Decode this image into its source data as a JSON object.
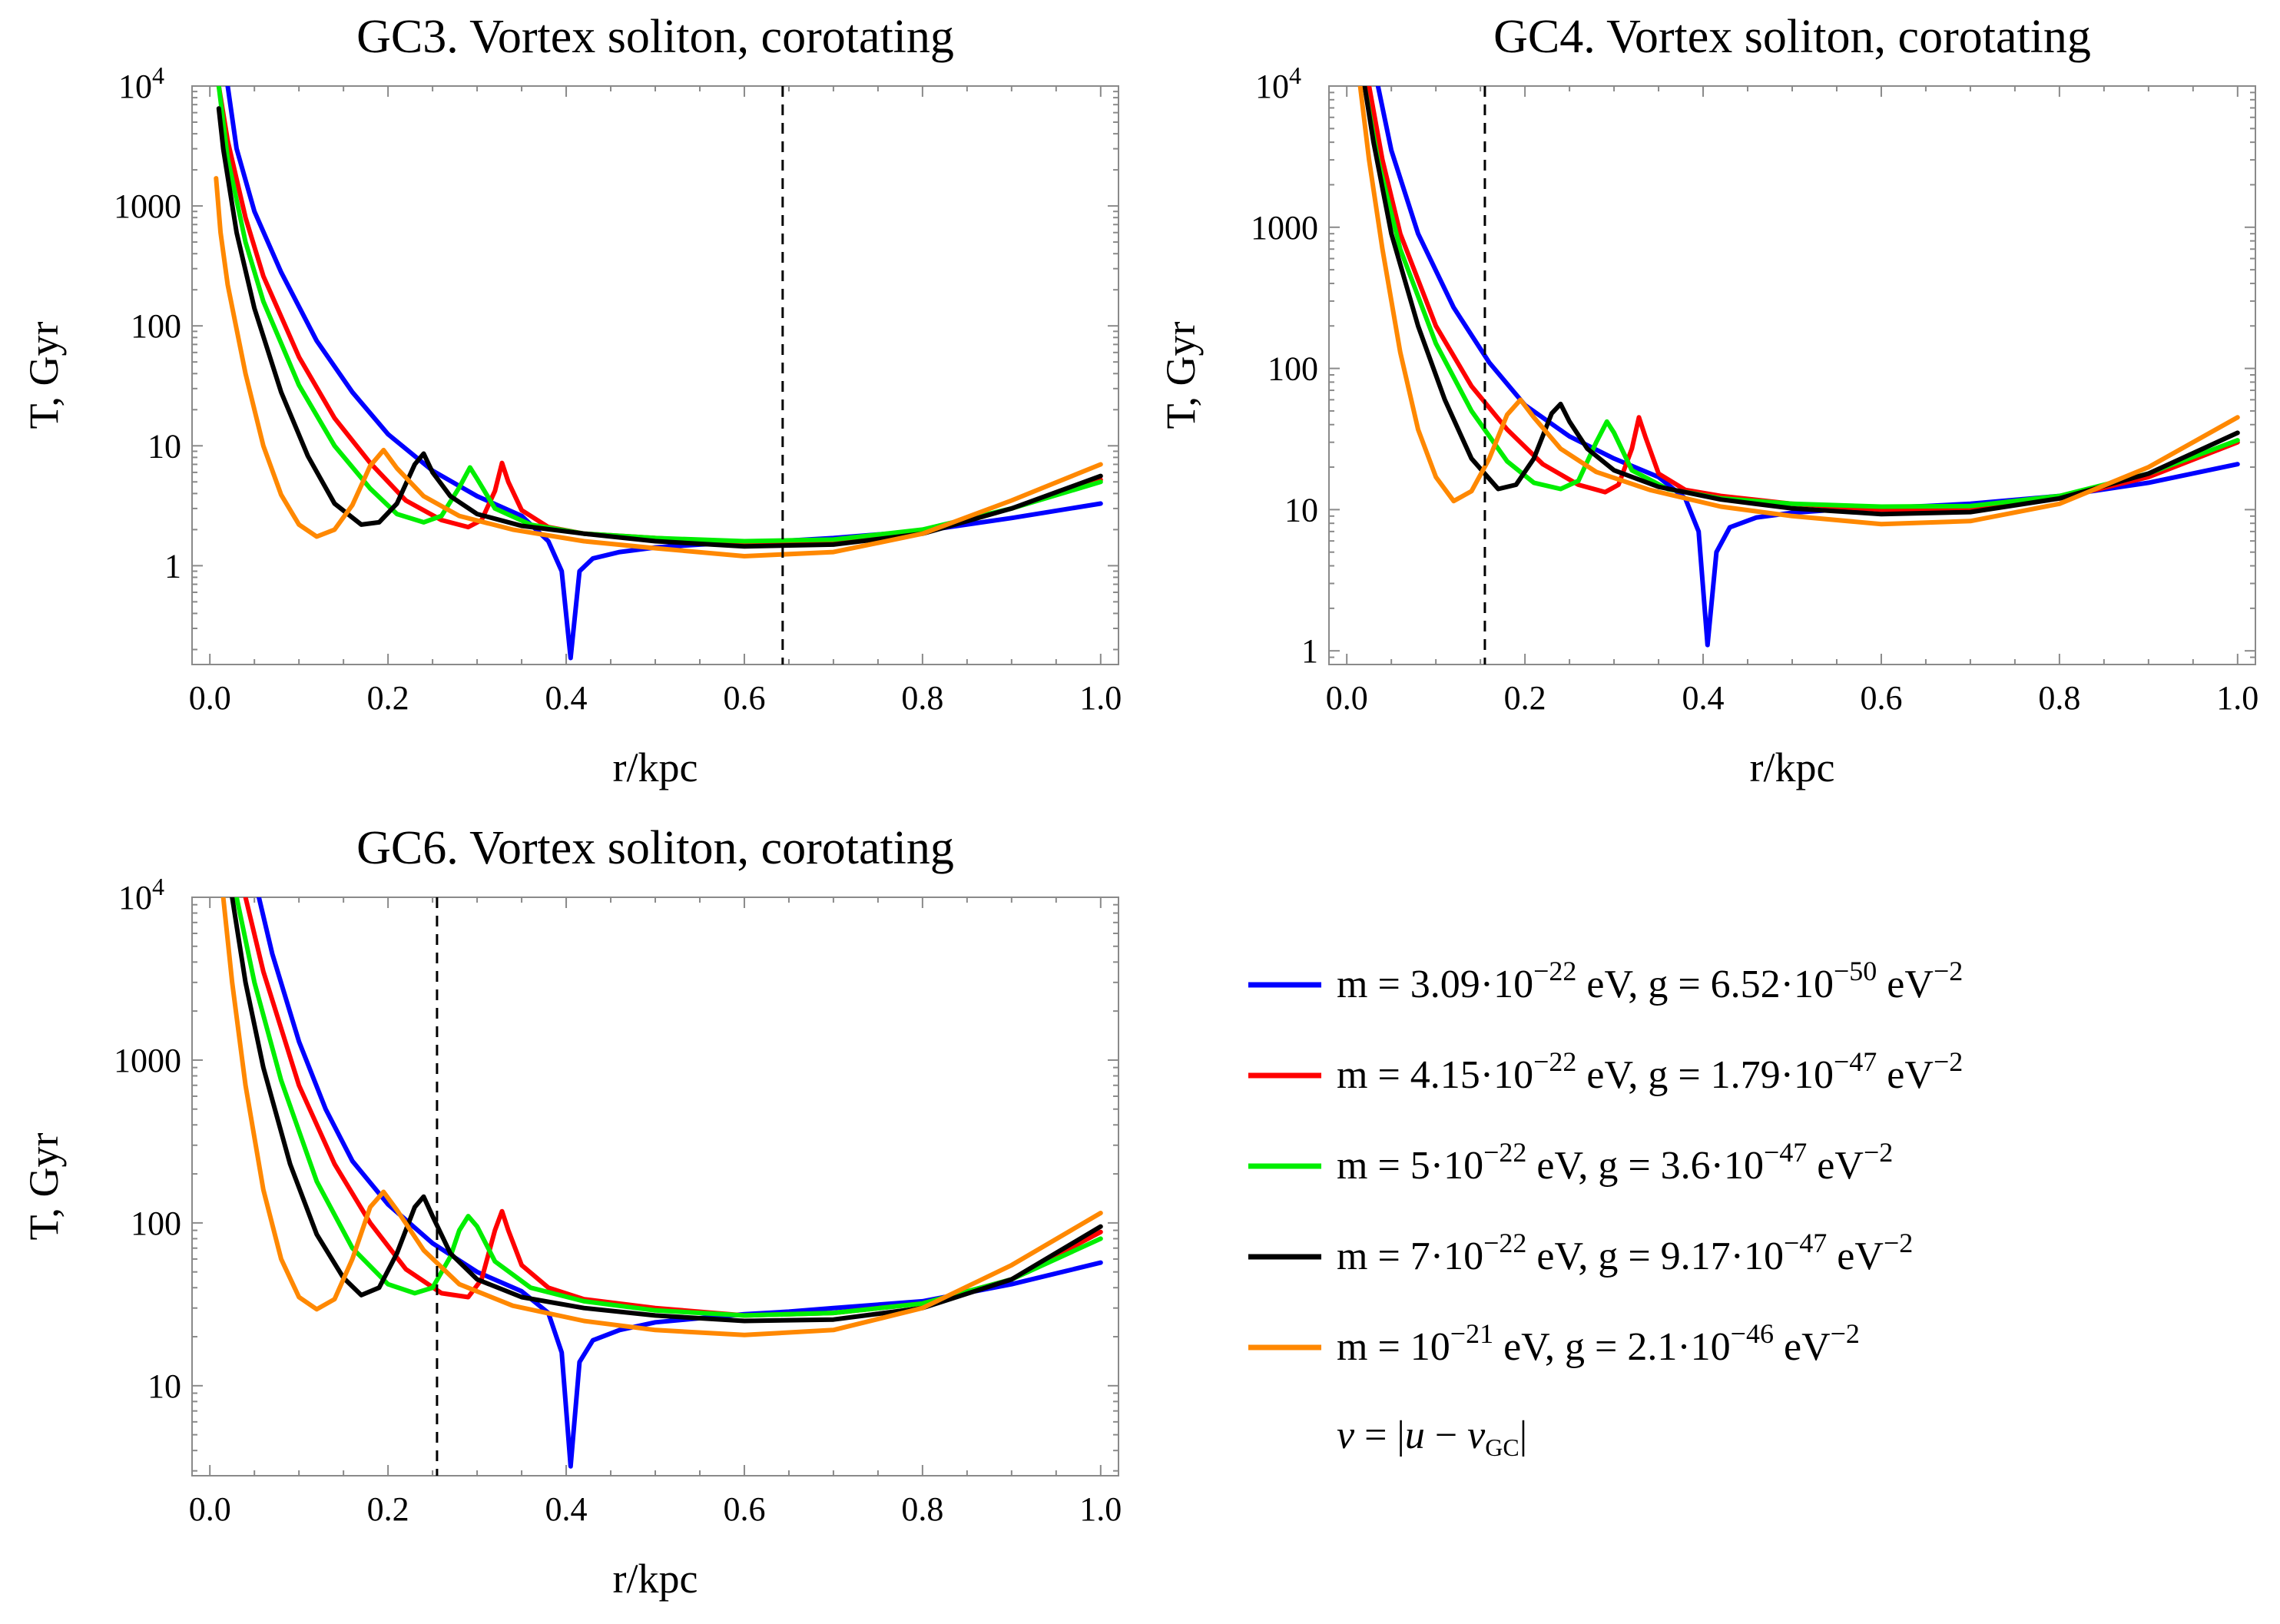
{
  "chart_data": [
    {
      "type": "line",
      "title": "GC3. Vortex soliton, corotating",
      "xlabel": "r/kpc",
      "ylabel": "T, Gyr",
      "yscale": "log",
      "xlim": [
        0,
        1.0
      ],
      "ylim": [
        0.15,
        10000
      ],
      "x_ticks": [
        "0.0",
        "0.2",
        "0.4",
        "0.6",
        "0.8",
        "1.0"
      ],
      "y_ticks": [
        {
          "value": 1,
          "label": "1"
        },
        {
          "value": 10,
          "label": "10"
        },
        {
          "value": 100,
          "label": "100"
        },
        {
          "value": 1000,
          "label": "1000"
        },
        {
          "value": 10000,
          "label": "10",
          "exp": "4"
        }
      ],
      "vline_x": 0.643,
      "series": [
        {
          "name": "m = 3.09·10^-22",
          "color": "#0000ff",
          "x": [
            0.02,
            0.03,
            0.05,
            0.08,
            0.12,
            0.16,
            0.2,
            0.25,
            0.3,
            0.35,
            0.38,
            0.395,
            0.405,
            0.415,
            0.43,
            0.46,
            0.5,
            0.55,
            0.6,
            0.65,
            0.7,
            0.8,
            0.9,
            1.0
          ],
          "y": [
            10000,
            3000,
            900,
            280,
            75,
            28,
            12.5,
            6.2,
            3.8,
            2.6,
            1.6,
            0.9,
            0.17,
            0.9,
            1.15,
            1.3,
            1.42,
            1.5,
            1.57,
            1.62,
            1.7,
            1.95,
            2.5,
            3.3
          ]
        },
        {
          "name": "m = 4.15·10^-22",
          "color": "#ff0000",
          "x": [
            0.01,
            0.02,
            0.04,
            0.06,
            0.1,
            0.14,
            0.18,
            0.22,
            0.26,
            0.29,
            0.305,
            0.32,
            0.328,
            0.335,
            0.35,
            0.38,
            0.42,
            0.5,
            0.6,
            0.7,
            0.8,
            0.9,
            1.0
          ],
          "y": [
            10000,
            3500,
            800,
            260,
            55,
            17,
            7.2,
            3.5,
            2.4,
            2.1,
            2.4,
            4.2,
            7.2,
            5.0,
            2.9,
            2.1,
            1.85,
            1.7,
            1.55,
            1.6,
            1.95,
            3.0,
            5.2
          ]
        },
        {
          "name": "m = 5·10^-22",
          "color": "#00ee00",
          "x": [
            0.01,
            0.02,
            0.04,
            0.06,
            0.1,
            0.14,
            0.18,
            0.21,
            0.24,
            0.26,
            0.28,
            0.292,
            0.3,
            0.32,
            0.36,
            0.42,
            0.5,
            0.6,
            0.7,
            0.8,
            0.9,
            1.0
          ],
          "y": [
            10000,
            2500,
            500,
            160,
            32,
            10,
            4.4,
            2.7,
            2.3,
            2.6,
            4.5,
            6.6,
            5.3,
            3.0,
            2.2,
            1.85,
            1.7,
            1.6,
            1.65,
            2.0,
            3.0,
            5.0
          ]
        },
        {
          "name": "m = 7·10^-22",
          "color": "#000000",
          "x": [
            0.01,
            0.015,
            0.03,
            0.05,
            0.08,
            0.11,
            0.14,
            0.17,
            0.19,
            0.21,
            0.23,
            0.24,
            0.25,
            0.27,
            0.3,
            0.35,
            0.42,
            0.5,
            0.6,
            0.7,
            0.8,
            0.9,
            1.0
          ],
          "y": [
            6500,
            3000,
            600,
            140,
            28,
            8.2,
            3.3,
            2.2,
            2.3,
            3.3,
            7.0,
            8.6,
            6.0,
            3.8,
            2.7,
            2.15,
            1.85,
            1.6,
            1.45,
            1.5,
            1.85,
            3.0,
            5.6
          ]
        },
        {
          "name": "m = 10^-21",
          "color": "#ff8800",
          "x": [
            0.007,
            0.012,
            0.02,
            0.04,
            0.06,
            0.08,
            0.1,
            0.12,
            0.14,
            0.16,
            0.18,
            0.195,
            0.21,
            0.24,
            0.28,
            0.34,
            0.42,
            0.5,
            0.6,
            0.7,
            0.8,
            0.9,
            1.0
          ],
          "y": [
            1700,
            600,
            220,
            40,
            10,
            3.9,
            2.2,
            1.75,
            2.0,
            3.2,
            6.8,
            9.2,
            6.5,
            3.8,
            2.6,
            2.0,
            1.6,
            1.4,
            1.2,
            1.3,
            1.85,
            3.5,
            7.0
          ]
        }
      ]
    },
    {
      "type": "line",
      "title": "GC4. Vortex soliton, corotating",
      "xlabel": "r/kpc",
      "ylabel": "T, Gyr",
      "yscale": "log",
      "xlim": [
        0,
        1.0
      ],
      "ylim": [
        0.8,
        10000
      ],
      "x_ticks": [
        "0.0",
        "0.2",
        "0.4",
        "0.6",
        "0.8",
        "1.0"
      ],
      "y_ticks": [
        {
          "value": 1,
          "label": "1"
        },
        {
          "value": 10,
          "label": "10"
        },
        {
          "value": 100,
          "label": "100"
        },
        {
          "value": 1000,
          "label": "1000"
        },
        {
          "value": 10000,
          "label": "10",
          "exp": "4"
        }
      ],
      "vline_x": 0.155,
      "series": [
        {
          "name": "m = 3.09·10^-22",
          "color": "#0000ff",
          "x": [
            0.035,
            0.05,
            0.08,
            0.12,
            0.16,
            0.2,
            0.25,
            0.3,
            0.35,
            0.38,
            0.395,
            0.405,
            0.415,
            0.43,
            0.46,
            0.5,
            0.55,
            0.6,
            0.65,
            0.7,
            0.8,
            0.9,
            1.0
          ],
          "y": [
            10000,
            3500,
            900,
            270,
            110,
            55,
            33,
            23,
            17,
            12,
            7,
            1.1,
            5,
            7.5,
            8.8,
            9.5,
            10,
            10.3,
            10.6,
            11,
            12.5,
            15.5,
            21
          ]
        },
        {
          "name": "m = 4.15·10^-22",
          "color": "#ff0000",
          "x": [
            0.025,
            0.04,
            0.06,
            0.1,
            0.14,
            0.18,
            0.22,
            0.26,
            0.29,
            0.305,
            0.32,
            0.328,
            0.335,
            0.35,
            0.38,
            0.42,
            0.5,
            0.6,
            0.7,
            0.8,
            0.9,
            1.0
          ],
          "y": [
            10000,
            3000,
            900,
            200,
            75,
            37,
            21,
            15,
            13.3,
            15,
            27,
            45,
            33,
            18,
            13.8,
            12.5,
            11,
            10,
            10.2,
            12,
            17,
            30
          ]
        },
        {
          "name": "m = 5·10^-22",
          "color": "#00ee00",
          "x": [
            0.02,
            0.035,
            0.06,
            0.1,
            0.14,
            0.18,
            0.21,
            0.24,
            0.26,
            0.28,
            0.292,
            0.3,
            0.32,
            0.36,
            0.42,
            0.5,
            0.6,
            0.7,
            0.8,
            0.9,
            1.0
          ],
          "y": [
            10000,
            3000,
            700,
            150,
            50,
            22,
            15.5,
            14,
            16,
            30,
            42,
            35,
            19,
            14,
            12,
            11,
            10.5,
            10.6,
            12.5,
            18,
            31
          ]
        },
        {
          "name": "m = 7·10^-22",
          "color": "#000000",
          "x": [
            0.02,
            0.03,
            0.05,
            0.08,
            0.11,
            0.14,
            0.17,
            0.19,
            0.21,
            0.23,
            0.24,
            0.25,
            0.27,
            0.3,
            0.35,
            0.42,
            0.5,
            0.6,
            0.7,
            0.8,
            0.9,
            1.0
          ],
          "y": [
            10000,
            4000,
            900,
            200,
            60,
            23,
            14,
            15,
            23,
            48,
            56,
            42,
            27,
            19,
            14.5,
            11.8,
            10.2,
            9.3,
            9.6,
            12,
            18,
            35
          ]
        },
        {
          "name": "m = 10^-21",
          "color": "#ff8800",
          "x": [
            0.015,
            0.025,
            0.04,
            0.06,
            0.08,
            0.1,
            0.12,
            0.14,
            0.16,
            0.18,
            0.195,
            0.21,
            0.24,
            0.28,
            0.34,
            0.42,
            0.5,
            0.6,
            0.7,
            0.8,
            0.9,
            1.0
          ],
          "y": [
            10000,
            3000,
            700,
            130,
            37,
            17,
            11.5,
            13.5,
            23,
            47,
            60,
            45,
            27,
            18.5,
            13.8,
            10.5,
            9,
            7.9,
            8.3,
            11,
            20,
            45
          ]
        }
      ]
    },
    {
      "type": "line",
      "title": "GC6. Vortex soliton, corotating",
      "xlabel": "r/kpc",
      "ylabel": "T, Gyr",
      "yscale": "log",
      "xlim": [
        0,
        1.0
      ],
      "ylim": [
        2.8,
        10000
      ],
      "x_ticks": [
        "0.0",
        "0.2",
        "0.4",
        "0.6",
        "0.8",
        "1.0"
      ],
      "y_ticks": [
        {
          "value": 10,
          "label": "10"
        },
        {
          "value": 100,
          "label": "100"
        },
        {
          "value": 1000,
          "label": "1000"
        },
        {
          "value": 10000,
          "label": "10",
          "exp": "4"
        }
      ],
      "vline_x": 0.255,
      "series": [
        {
          "name": "m = 3.09·10^-22",
          "color": "#0000ff",
          "x": [
            0.055,
            0.07,
            0.1,
            0.13,
            0.16,
            0.2,
            0.25,
            0.3,
            0.35,
            0.38,
            0.395,
            0.405,
            0.415,
            0.43,
            0.46,
            0.5,
            0.55,
            0.6,
            0.65,
            0.7,
            0.8,
            0.9,
            1.0
          ],
          "y": [
            10000,
            4500,
            1300,
            500,
            240,
            130,
            75,
            50,
            38,
            28,
            16,
            3.2,
            14,
            19,
            22,
            24.5,
            26,
            27.5,
            28.5,
            30,
            33,
            42,
            57
          ]
        },
        {
          "name": "m = 4.15·10^-22",
          "color": "#ff0000",
          "x": [
            0.04,
            0.06,
            0.1,
            0.14,
            0.18,
            0.22,
            0.26,
            0.29,
            0.305,
            0.32,
            0.328,
            0.335,
            0.35,
            0.38,
            0.42,
            0.5,
            0.6,
            0.7,
            0.8,
            0.9,
            1.0
          ],
          "y": [
            10000,
            3500,
            700,
            230,
            100,
            52,
            37,
            35,
            45,
            90,
            118,
            90,
            55,
            40,
            34,
            30,
            27,
            28,
            32,
            45,
            88
          ]
        },
        {
          "name": "m = 5·10^-22",
          "color": "#00ee00",
          "x": [
            0.03,
            0.05,
            0.08,
            0.12,
            0.16,
            0.2,
            0.23,
            0.25,
            0.27,
            0.28,
            0.29,
            0.3,
            0.32,
            0.36,
            0.42,
            0.5,
            0.6,
            0.7,
            0.8,
            0.9,
            1.0
          ],
          "y": [
            10000,
            3000,
            750,
            180,
            70,
            42,
            37,
            40,
            62,
            90,
            110,
            95,
            58,
            40,
            33,
            29,
            27,
            28,
            32,
            45,
            80
          ]
        },
        {
          "name": "m = 7·10^-22",
          "color": "#000000",
          "x": [
            0.025,
            0.04,
            0.06,
            0.09,
            0.12,
            0.15,
            0.17,
            0.19,
            0.21,
            0.23,
            0.24,
            0.25,
            0.27,
            0.3,
            0.35,
            0.42,
            0.5,
            0.6,
            0.7,
            0.8,
            0.9,
            1.0
          ],
          "y": [
            10000,
            3000,
            900,
            230,
            85,
            46,
            36,
            40,
            65,
            125,
            145,
            110,
            65,
            45,
            35,
            30,
            27,
            25,
            25.5,
            30,
            45,
            95
          ]
        },
        {
          "name": "m = 10^-21",
          "color": "#ff8800",
          "x": [
            0.015,
            0.025,
            0.04,
            0.06,
            0.08,
            0.1,
            0.12,
            0.14,
            0.16,
            0.18,
            0.195,
            0.21,
            0.24,
            0.28,
            0.34,
            0.42,
            0.5,
            0.6,
            0.7,
            0.8,
            0.9,
            1.0
          ],
          "y": [
            10000,
            3000,
            700,
            160,
            60,
            35,
            29.5,
            34,
            60,
            125,
            155,
            120,
            68,
            42,
            31,
            25,
            22,
            20.5,
            22,
            30,
            55,
            115
          ]
        }
      ]
    }
  ],
  "legend": {
    "entries": [
      {
        "color": "#0000ff",
        "m_label": "m = 3.09·10",
        "m_exp": "−22",
        "g_label": " eV, g = 6.52·10",
        "g_exp": "−50",
        "unit": " eV",
        "unit_exp": "−2"
      },
      {
        "color": "#ff0000",
        "m_label": "m = 4.15·10",
        "m_exp": "−22",
        "g_label": " eV, g = 1.79·10",
        "g_exp": "−47",
        "unit": " eV",
        "unit_exp": "−2"
      },
      {
        "color": "#00ee00",
        "m_label": "m = 5·10",
        "m_exp": "−22",
        "g_label": " eV, g = 3.6·10",
        "g_exp": "−47",
        "unit": " eV",
        "unit_exp": "−2"
      },
      {
        "color": "#000000",
        "m_label": "m = 7·10",
        "m_exp": "−22",
        "g_label": " eV, g = 9.17·10",
        "g_exp": "−47",
        "unit": " eV",
        "unit_exp": "−2"
      },
      {
        "color": "#ff8800",
        "m_label": "m = 10",
        "m_exp": "−21",
        "g_label": " eV, g = 2.1·10",
        "g_exp": "−46",
        "unit": " eV",
        "unit_exp": "−2"
      }
    ],
    "velocity_note": {
      "lhs": "v",
      "eq": " = |",
      "u": "u",
      "minus": " − ",
      "v": "v",
      "sub": "GC",
      "close": "|"
    }
  }
}
